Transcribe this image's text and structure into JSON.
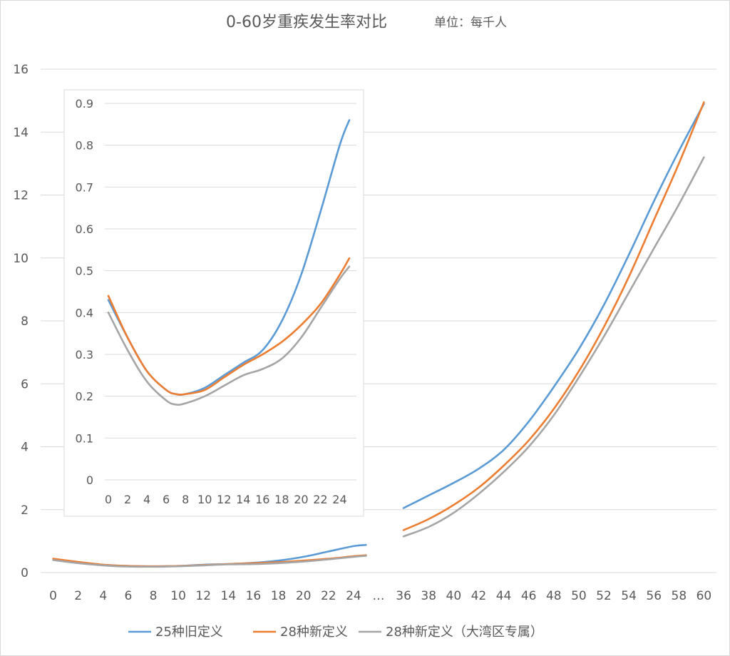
{
  "chart_data": {
    "type": "line",
    "title": "0-60岁重疾发生率对比",
    "unit_label": "单位：每千人",
    "main": {
      "x_labels": [
        "0",
        "2",
        "4",
        "6",
        "8",
        "10",
        "12",
        "14",
        "16",
        "18",
        "20",
        "22",
        "24",
        "…",
        "36",
        "38",
        "40",
        "42",
        "44",
        "46",
        "48",
        "50",
        "52",
        "54",
        "56",
        "58",
        "60"
      ],
      "y_ticks": [
        "0",
        "2",
        "4",
        "6",
        "8",
        "10",
        "12",
        "14",
        "16"
      ],
      "ylim": [
        0,
        16
      ],
      "series": [
        {
          "name": "25种旧定义",
          "color": "#5b9bd5",
          "young": [
            [
              0,
              0.43
            ],
            [
              2,
              0.33
            ],
            [
              4,
              0.25
            ],
            [
              6,
              0.21
            ],
            [
              8,
              0.2
            ],
            [
              10,
              0.21
            ],
            [
              12,
              0.25
            ],
            [
              14,
              0.27
            ],
            [
              16,
              0.31
            ],
            [
              18,
              0.38
            ],
            [
              20,
              0.5
            ],
            [
              22,
              0.67
            ],
            [
              24,
              0.84
            ],
            [
              25,
              0.88
            ]
          ],
          "old": [
            [
              36,
              2.05
            ],
            [
              38,
              2.45
            ],
            [
              40,
              2.85
            ],
            [
              42,
              3.3
            ],
            [
              44,
              3.9
            ],
            [
              46,
              4.8
            ],
            [
              48,
              5.9
            ],
            [
              50,
              7.1
            ],
            [
              52,
              8.5
            ],
            [
              54,
              10.1
            ],
            [
              56,
              11.8
            ],
            [
              58,
              13.4
            ],
            [
              60,
              14.9
            ]
          ]
        },
        {
          "name": "28种新定义",
          "color": "#ed7d31",
          "young": [
            [
              0,
              0.44
            ],
            [
              2,
              0.34
            ],
            [
              4,
              0.25
            ],
            [
              6,
              0.21
            ],
            [
              8,
              0.2
            ],
            [
              10,
              0.21
            ],
            [
              12,
              0.24
            ],
            [
              14,
              0.27
            ],
            [
              16,
              0.3
            ],
            [
              18,
              0.33
            ],
            [
              20,
              0.38
            ],
            [
              22,
              0.44
            ],
            [
              24,
              0.52
            ],
            [
              25,
              0.55
            ]
          ],
          "old": [
            [
              36,
              1.35
            ],
            [
              38,
              1.7
            ],
            [
              40,
              2.15
            ],
            [
              42,
              2.7
            ],
            [
              44,
              3.4
            ],
            [
              46,
              4.2
            ],
            [
              48,
              5.2
            ],
            [
              50,
              6.4
            ],
            [
              52,
              7.8
            ],
            [
              54,
              9.4
            ],
            [
              56,
              11.2
            ],
            [
              58,
              13.0
            ],
            [
              60,
              14.95
            ]
          ]
        },
        {
          "name": "28种新定义（大湾区专属）",
          "color": "#a5a5a5",
          "young": [
            [
              0,
              0.4
            ],
            [
              2,
              0.3
            ],
            [
              4,
              0.23
            ],
            [
              6,
              0.19
            ],
            [
              8,
              0.185
            ],
            [
              10,
              0.2
            ],
            [
              12,
              0.23
            ],
            [
              14,
              0.26
            ],
            [
              16,
              0.27
            ],
            [
              18,
              0.3
            ],
            [
              20,
              0.35
            ],
            [
              22,
              0.42
            ],
            [
              24,
              0.5
            ],
            [
              25,
              0.53
            ]
          ],
          "old": [
            [
              36,
              1.15
            ],
            [
              38,
              1.45
            ],
            [
              40,
              1.9
            ],
            [
              42,
              2.5
            ],
            [
              44,
              3.2
            ],
            [
              46,
              4.0
            ],
            [
              48,
              5.0
            ],
            [
              50,
              6.2
            ],
            [
              52,
              7.5
            ],
            [
              54,
              8.9
            ],
            [
              56,
              10.3
            ],
            [
              58,
              11.7
            ],
            [
              60,
              13.2
            ]
          ]
        }
      ]
    },
    "inset": {
      "x_labels": [
        "0",
        "2",
        "4",
        "6",
        "8",
        "10",
        "12",
        "14",
        "16",
        "18",
        "20",
        "22",
        "24"
      ],
      "y_ticks": [
        "0",
        "0.1",
        "0.2",
        "0.3",
        "0.4",
        "0.5",
        "0.6",
        "0.7",
        "0.8",
        "0.9"
      ],
      "ylim": [
        0,
        0.9
      ],
      "xlim": [
        0,
        25
      ],
      "series": [
        {
          "name": "25种旧定义",
          "color": "#5b9bd5",
          "points": [
            [
              0,
              0.43
            ],
            [
              2,
              0.34
            ],
            [
              4,
              0.26
            ],
            [
              6,
              0.215
            ],
            [
              7,
              0.205
            ],
            [
              8,
              0.205
            ],
            [
              10,
              0.22
            ],
            [
              12,
              0.25
            ],
            [
              14,
              0.28
            ],
            [
              16,
              0.31
            ],
            [
              18,
              0.38
            ],
            [
              20,
              0.49
            ],
            [
              22,
              0.64
            ],
            [
              24,
              0.8
            ],
            [
              25,
              0.86
            ]
          ]
        },
        {
          "name": "28种新定义",
          "color": "#ed7d31",
          "points": [
            [
              0,
              0.44
            ],
            [
              2,
              0.34
            ],
            [
              4,
              0.26
            ],
            [
              6,
              0.215
            ],
            [
              7,
              0.205
            ],
            [
              8,
              0.205
            ],
            [
              10,
              0.215
            ],
            [
              12,
              0.245
            ],
            [
              14,
              0.275
            ],
            [
              16,
              0.3
            ],
            [
              18,
              0.33
            ],
            [
              20,
              0.37
            ],
            [
              22,
              0.42
            ],
            [
              24,
              0.49
            ],
            [
              25,
              0.53
            ]
          ]
        },
        {
          "name": "28种新定义（大湾区专属）",
          "color": "#a5a5a5",
          "points": [
            [
              0,
              0.4
            ],
            [
              2,
              0.31
            ],
            [
              4,
              0.235
            ],
            [
              6,
              0.19
            ],
            [
              7,
              0.18
            ],
            [
              8,
              0.183
            ],
            [
              10,
              0.2
            ],
            [
              12,
              0.225
            ],
            [
              14,
              0.25
            ],
            [
              16,
              0.265
            ],
            [
              18,
              0.29
            ],
            [
              20,
              0.34
            ],
            [
              22,
              0.41
            ],
            [
              24,
              0.48
            ],
            [
              25,
              0.51
            ]
          ]
        }
      ]
    },
    "legend": {
      "position": "bottom"
    }
  }
}
